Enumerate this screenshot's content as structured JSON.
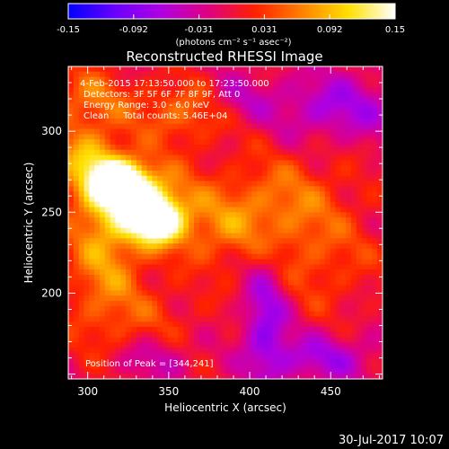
{
  "colorbar": {
    "ticks": [
      "-0.15",
      "-0.092",
      "-0.031",
      "0.031",
      "0.092",
      "0.15"
    ],
    "units_label": "(photons cm⁻² s⁻¹ asec⁻²)",
    "range": [
      -0.15,
      0.15
    ],
    "colormap_stops": [
      "#0000ff",
      "#6a00ff",
      "#b000e0",
      "#e00080",
      "#ff2000",
      "#ff8000",
      "#ffe000",
      "#ffffff"
    ]
  },
  "chart_data": {
    "type": "heatmap",
    "title": "Reconstructed RHESSI Image",
    "xlabel": "Heliocentric X (arcsec)",
    "ylabel": "Heliocentric Y (arcsec)",
    "xlim": [
      288,
      482
    ],
    "ylim": [
      147,
      340
    ],
    "xticks": [
      300,
      350,
      400,
      450
    ],
    "yticks": [
      200,
      250,
      300
    ],
    "tick_labels_x": [
      "300",
      "350",
      "400",
      "450"
    ],
    "tick_labels_y": [
      "200",
      "250",
      "300"
    ],
    "annotations": [
      "4-Feb-2015 17:13:50.000 to 17:23:50.000",
      "Detectors: 3F 5F 6F 7F 8F 9F, Att 0",
      "Energy Range: 3.0 - 6.0 keV",
      "Clean     Total counts: 5.46E+04"
    ],
    "peak_label": "Position of Peak = [344,241]",
    "peak_position": [
      344,
      241
    ],
    "sources": [
      {
        "x": 320,
        "y": 268,
        "amp": 0.15,
        "sx": 12,
        "sy": 9
      },
      {
        "x": 342,
        "y": 245,
        "amp": 0.15,
        "sx": 11,
        "sy": 10
      },
      {
        "x": 330,
        "y": 258,
        "amp": 0.11,
        "sx": 22,
        "sy": 16
      },
      {
        "x": 300,
        "y": 282,
        "amp": 0.08,
        "sx": 16,
        "sy": 14
      },
      {
        "x": 310,
        "y": 225,
        "amp": 0.07,
        "sx": 16,
        "sy": 28
      },
      {
        "x": 360,
        "y": 312,
        "amp": 0.06,
        "sx": 22,
        "sy": 14
      },
      {
        "x": 380,
        "y": 240,
        "amp": 0.05,
        "sx": 26,
        "sy": 16
      },
      {
        "x": 420,
        "y": 260,
        "amp": 0.05,
        "sx": 30,
        "sy": 20
      },
      {
        "x": 440,
        "y": 220,
        "amp": 0.04,
        "sx": 30,
        "sy": 24
      },
      {
        "x": 300,
        "y": 320,
        "amp": 0.06,
        "sx": 18,
        "sy": 14
      },
      {
        "x": 330,
        "y": 180,
        "amp": 0.035,
        "sx": 30,
        "sy": 22
      },
      {
        "x": 410,
        "y": 185,
        "amp": -0.08,
        "sx": 10,
        "sy": 28
      },
      {
        "x": 445,
        "y": 160,
        "amp": -0.06,
        "sx": 22,
        "sy": 10
      },
      {
        "x": 455,
        "y": 315,
        "amp": -0.06,
        "sx": 30,
        "sy": 14
      },
      {
        "x": 390,
        "y": 320,
        "amp": -0.04,
        "sx": 14,
        "sy": 10
      },
      {
        "x": 340,
        "y": 160,
        "amp": -0.05,
        "sx": 18,
        "sy": 10
      }
    ]
  },
  "footer": {
    "timestamp": "30-Jul-2017 10:07"
  }
}
